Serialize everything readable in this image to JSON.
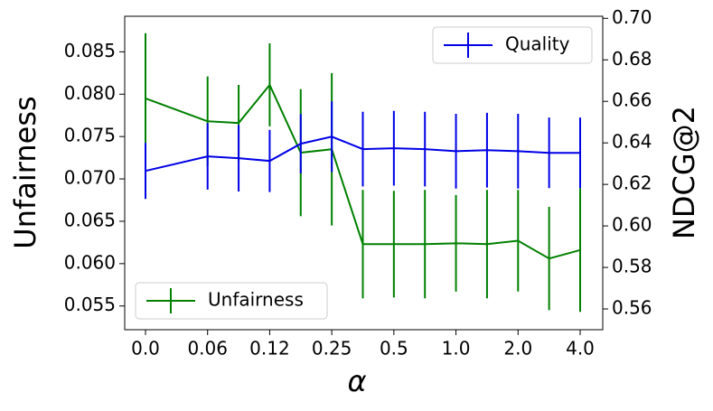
{
  "chart_data": {
    "type": "line",
    "xlabel": "α",
    "ylabel": "Unfairness",
    "y2label": "NDCG@2",
    "categories": [
      "0.0",
      null,
      "0.06",
      null,
      "0.12",
      null,
      "0.25",
      null,
      "0.5",
      null,
      "1.0",
      null,
      "2.0",
      null,
      "4.0"
    ],
    "series": [
      {
        "name": "Unfairness",
        "color": "#008000",
        "axis": "y",
        "values": [
          0.0795,
          null,
          0.0768,
          0.0766,
          0.0811,
          0.0731,
          0.0735,
          0.0623,
          0.0623,
          0.0623,
          0.0624,
          0.0623,
          0.0627,
          0.0606,
          0.0616
        ],
        "errors": [
          0.0077,
          null,
          0.0053,
          0.0045,
          0.0049,
          0.0075,
          0.009,
          0.0064,
          0.0063,
          0.0064,
          0.0057,
          0.0064,
          0.006,
          0.0061,
          0.0073
        ]
      },
      {
        "name": "Quality",
        "color": "#0000e6",
        "axis": "y2",
        "values": [
          0.6265,
          null,
          0.6335,
          0.6326,
          0.6313,
          0.6396,
          0.643,
          0.637,
          0.6374,
          0.637,
          0.636,
          0.6365,
          0.636,
          0.6352,
          0.6352
        ],
        "errors": [
          0.0135,
          null,
          0.016,
          0.016,
          0.015,
          0.0143,
          0.017,
          0.018,
          0.018,
          0.018,
          0.018,
          0.018,
          0.018,
          0.017,
          0.017
        ]
      }
    ],
    "ylim": [
      0.0522,
      0.0892
    ],
    "yticks": [
      0.055,
      {
        "value": 0.06,
        "label": "0.060"
      },
      0.065,
      {
        "value": 0.07,
        "label": "0.070"
      },
      0.075,
      {
        "value": 0.08,
        "label": "0.080"
      },
      0.085
    ],
    "y2lim": [
      0.55,
      0.701
    ],
    "y2ticks": [
      0.56,
      0.58,
      {
        "value": 0.6,
        "label": "0.60"
      },
      0.62,
      0.64,
      0.66,
      0.68,
      {
        "value": 0.7,
        "label": "0.70"
      }
    ],
    "legend": [
      "lower left",
      "upper right"
    ]
  }
}
